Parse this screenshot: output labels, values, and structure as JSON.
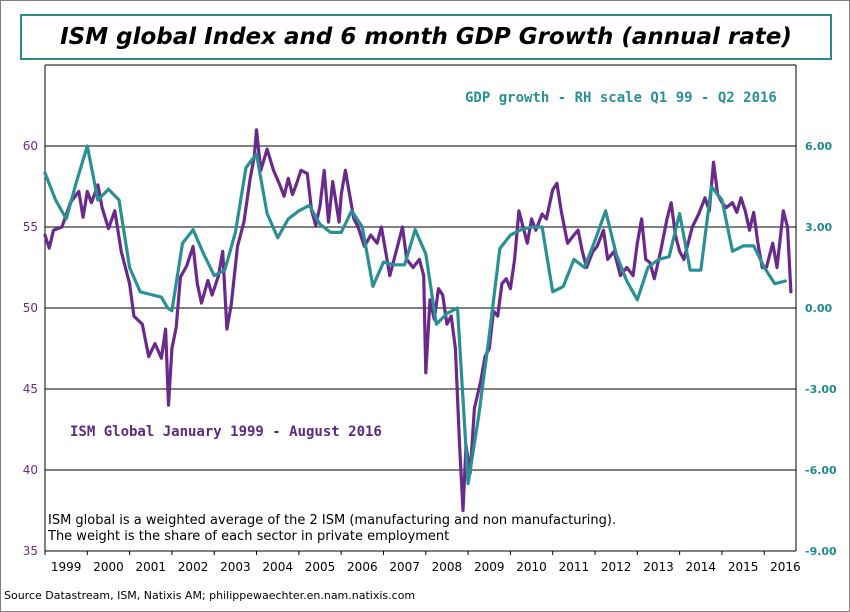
{
  "title": "ISM global Index and 6 month GDP Growth (annual rate)",
  "annotations": {
    "gdp": "GDP growth - RH scale Q1 99 - Q2 2016",
    "ism": "ISM Global January 1999 - August 2016"
  },
  "note": "ISM global is a weighted average of the 2 ISM (manufacturing and non manufacturing). The weight is the share of each sector in private employment",
  "source": "Source Datastream, ISM, Natixis AM; philippewaechter.en.nam.natixis.com",
  "colors": {
    "ism": "#6a2a8c",
    "gdp": "#2a9094",
    "grid": "#000000",
    "frame": "#2a8a8e"
  },
  "chart_data": {
    "type": "line",
    "x_ticks": [
      "1999",
      "2000",
      "2001",
      "2002",
      "2003",
      "2004",
      "2005",
      "2006",
      "2007",
      "2008",
      "2009",
      "2010",
      "2011",
      "2012",
      "2013",
      "2014",
      "2015",
      "2016"
    ],
    "y_left_ticks": [
      "35",
      "40",
      "45",
      "50",
      "55",
      "60"
    ],
    "y_right_ticks": [
      "-9.00",
      "-6.00",
      "-3.00",
      "0.00",
      "3.00",
      "6.00"
    ],
    "y_left_range": [
      35,
      65
    ],
    "y_right_range": [
      -9,
      9
    ],
    "grid": "horizontal",
    "series": [
      {
        "name": "ISM Global January 1999 - August 2016",
        "axis": "left",
        "color": "#6a2a8c",
        "points": [
          [
            1999.0,
            54.5
          ],
          [
            1999.1,
            53.7
          ],
          [
            1999.2,
            54.8
          ],
          [
            1999.4,
            55.0
          ],
          [
            1999.6,
            56.5
          ],
          [
            1999.8,
            57.2
          ],
          [
            1999.9,
            55.6
          ],
          [
            2000.0,
            57.2
          ],
          [
            2000.1,
            56.5
          ],
          [
            2000.25,
            57.6
          ],
          [
            2000.35,
            56.2
          ],
          [
            2000.5,
            54.9
          ],
          [
            2000.65,
            56.0
          ],
          [
            2000.8,
            53.5
          ],
          [
            2001.0,
            51.5
          ],
          [
            2001.1,
            49.5
          ],
          [
            2001.3,
            49.0
          ],
          [
            2001.45,
            47.0
          ],
          [
            2001.6,
            47.8
          ],
          [
            2001.75,
            46.9
          ],
          [
            2001.85,
            48.7
          ],
          [
            2001.92,
            44.0
          ],
          [
            2002.0,
            47.5
          ],
          [
            2002.1,
            48.8
          ],
          [
            2002.2,
            51.9
          ],
          [
            2002.35,
            52.6
          ],
          [
            2002.5,
            53.8
          ],
          [
            2002.6,
            51.5
          ],
          [
            2002.7,
            50.3
          ],
          [
            2002.85,
            51.7
          ],
          [
            2002.95,
            50.8
          ],
          [
            2003.1,
            52.0
          ],
          [
            2003.2,
            53.5
          ],
          [
            2003.3,
            48.7
          ],
          [
            2003.4,
            50.2
          ],
          [
            2003.55,
            53.8
          ],
          [
            2003.7,
            55.3
          ],
          [
            2003.85,
            58.0
          ],
          [
            2003.95,
            59.4
          ],
          [
            2004.0,
            61.0
          ],
          [
            2004.1,
            58.5
          ],
          [
            2004.25,
            59.8
          ],
          [
            2004.4,
            58.5
          ],
          [
            2004.55,
            57.6
          ],
          [
            2004.65,
            56.9
          ],
          [
            2004.75,
            58.0
          ],
          [
            2004.85,
            57.0
          ],
          [
            2004.95,
            57.7
          ],
          [
            2005.05,
            58.5
          ],
          [
            2005.2,
            58.3
          ],
          [
            2005.3,
            56.0
          ],
          [
            2005.4,
            55.1
          ],
          [
            2005.5,
            56.3
          ],
          [
            2005.6,
            58.5
          ],
          [
            2005.7,
            55.3
          ],
          [
            2005.8,
            57.8
          ],
          [
            2005.95,
            55.3
          ],
          [
            2006.0,
            57.0
          ],
          [
            2006.1,
            58.5
          ],
          [
            2006.2,
            57.0
          ],
          [
            2006.3,
            55.5
          ],
          [
            2006.4,
            55.0
          ],
          [
            2006.55,
            53.8
          ],
          [
            2006.7,
            54.5
          ],
          [
            2006.85,
            54.0
          ],
          [
            2006.95,
            55.0
          ],
          [
            2007.05,
            53.5
          ],
          [
            2007.15,
            52.0
          ],
          [
            2007.3,
            53.5
          ],
          [
            2007.45,
            55.0
          ],
          [
            2007.55,
            53.0
          ],
          [
            2007.7,
            52.5
          ],
          [
            2007.85,
            53.0
          ],
          [
            2007.95,
            52.0
          ],
          [
            2008.0,
            46.0
          ],
          [
            2008.1,
            50.5
          ],
          [
            2008.2,
            49.3
          ],
          [
            2008.3,
            51.2
          ],
          [
            2008.4,
            50.8
          ],
          [
            2008.5,
            49.0
          ],
          [
            2008.6,
            49.5
          ],
          [
            2008.7,
            47.5
          ],
          [
            2008.8,
            41.5
          ],
          [
            2008.88,
            37.5
          ],
          [
            2008.95,
            41.5
          ],
          [
            2009.05,
            39.8
          ],
          [
            2009.15,
            43.8
          ],
          [
            2009.3,
            45.5
          ],
          [
            2009.4,
            47.0
          ],
          [
            2009.5,
            47.5
          ],
          [
            2009.6,
            49.8
          ],
          [
            2009.7,
            49.5
          ],
          [
            2009.8,
            51.5
          ],
          [
            2009.9,
            51.8
          ],
          [
            2010.0,
            51.2
          ],
          [
            2010.1,
            53.0
          ],
          [
            2010.2,
            56.0
          ],
          [
            2010.3,
            55.0
          ],
          [
            2010.4,
            54.0
          ],
          [
            2010.5,
            55.5
          ],
          [
            2010.6,
            54.8
          ],
          [
            2010.75,
            55.8
          ],
          [
            2010.85,
            55.5
          ],
          [
            2011.0,
            57.3
          ],
          [
            2011.1,
            57.7
          ],
          [
            2011.2,
            56.0
          ],
          [
            2011.35,
            54.0
          ],
          [
            2011.5,
            54.5
          ],
          [
            2011.6,
            54.8
          ],
          [
            2011.7,
            53.5
          ],
          [
            2011.8,
            52.5
          ],
          [
            2011.95,
            53.5
          ],
          [
            2012.05,
            53.8
          ],
          [
            2012.2,
            54.8
          ],
          [
            2012.3,
            53.0
          ],
          [
            2012.45,
            53.5
          ],
          [
            2012.6,
            52.0
          ],
          [
            2012.75,
            52.5
          ],
          [
            2012.9,
            52.0
          ],
          [
            2013.0,
            54.0
          ],
          [
            2013.1,
            55.5
          ],
          [
            2013.2,
            53.0
          ],
          [
            2013.3,
            52.8
          ],
          [
            2013.4,
            51.8
          ],
          [
            2013.55,
            53.5
          ],
          [
            2013.7,
            55.5
          ],
          [
            2013.8,
            56.5
          ],
          [
            2013.9,
            54.5
          ],
          [
            2014.0,
            53.5
          ],
          [
            2014.1,
            53.0
          ],
          [
            2014.3,
            55.0
          ],
          [
            2014.45,
            55.8
          ],
          [
            2014.6,
            56.8
          ],
          [
            2014.7,
            56.0
          ],
          [
            2014.8,
            59.0
          ],
          [
            2014.9,
            57.0
          ],
          [
            2015.0,
            56.5
          ],
          [
            2015.1,
            56.2
          ],
          [
            2015.25,
            56.5
          ],
          [
            2015.35,
            55.9
          ],
          [
            2015.45,
            56.8
          ],
          [
            2015.55,
            56.0
          ],
          [
            2015.65,
            54.8
          ],
          [
            2015.75,
            55.9
          ],
          [
            2015.85,
            54.0
          ],
          [
            2015.95,
            52.5
          ],
          [
            2016.05,
            52.5
          ],
          [
            2016.2,
            54.0
          ],
          [
            2016.3,
            52.5
          ],
          [
            2016.45,
            56.0
          ],
          [
            2016.55,
            55.0
          ],
          [
            2016.63,
            51.0
          ]
        ]
      },
      {
        "name": "GDP growth - RH scale Q1 99 - Q2 2016",
        "axis": "right",
        "color": "#2a9094",
        "points": [
          [
            1999.0,
            5.0
          ],
          [
            1999.25,
            4.0
          ],
          [
            1999.5,
            3.3
          ],
          [
            1999.75,
            4.7
          ],
          [
            2000.0,
            6.0
          ],
          [
            2000.25,
            4.0
          ],
          [
            2000.5,
            4.4
          ],
          [
            2000.75,
            4.0
          ],
          [
            2001.0,
            1.5
          ],
          [
            2001.25,
            0.6
          ],
          [
            2001.5,
            0.5
          ],
          [
            2001.75,
            0.4
          ],
          [
            2001.9,
            0.0
          ],
          [
            2002.0,
            -0.1
          ],
          [
            2002.25,
            2.4
          ],
          [
            2002.5,
            2.9
          ],
          [
            2002.75,
            2.0
          ],
          [
            2003.0,
            1.2
          ],
          [
            2003.25,
            1.4
          ],
          [
            2003.5,
            2.8
          ],
          [
            2003.75,
            5.2
          ],
          [
            2004.0,
            5.7
          ],
          [
            2004.25,
            3.5
          ],
          [
            2004.5,
            2.6
          ],
          [
            2004.75,
            3.3
          ],
          [
            2005.0,
            3.6
          ],
          [
            2005.25,
            3.8
          ],
          [
            2005.5,
            3.1
          ],
          [
            2005.75,
            2.8
          ],
          [
            2006.0,
            2.8
          ],
          [
            2006.25,
            3.6
          ],
          [
            2006.5,
            3.0
          ],
          [
            2006.75,
            0.8
          ],
          [
            2007.0,
            1.7
          ],
          [
            2007.25,
            1.6
          ],
          [
            2007.5,
            1.6
          ],
          [
            2007.75,
            2.9
          ],
          [
            2008.0,
            2.0
          ],
          [
            2008.25,
            -0.6
          ],
          [
            2008.5,
            -0.2
          ],
          [
            2008.75,
            0.0
          ],
          [
            2009.0,
            -6.5
          ],
          [
            2009.25,
            -4.0
          ],
          [
            2009.5,
            -1.0
          ],
          [
            2009.75,
            2.2
          ],
          [
            2010.0,
            2.7
          ],
          [
            2010.25,
            2.9
          ],
          [
            2010.5,
            3.0
          ],
          [
            2010.75,
            3.0
          ],
          [
            2011.0,
            0.6
          ],
          [
            2011.25,
            0.8
          ],
          [
            2011.5,
            1.8
          ],
          [
            2011.75,
            1.5
          ],
          [
            2012.0,
            2.5
          ],
          [
            2012.25,
            3.6
          ],
          [
            2012.5,
            2.0
          ],
          [
            2012.75,
            1.0
          ],
          [
            2013.0,
            0.3
          ],
          [
            2013.25,
            1.5
          ],
          [
            2013.5,
            1.8
          ],
          [
            2013.75,
            1.9
          ],
          [
            2014.0,
            3.5
          ],
          [
            2014.25,
            1.4
          ],
          [
            2014.5,
            1.4
          ],
          [
            2014.75,
            4.5
          ],
          [
            2015.0,
            4.0
          ],
          [
            2015.25,
            2.1
          ],
          [
            2015.5,
            2.3
          ],
          [
            2015.75,
            2.3
          ],
          [
            2016.0,
            1.5
          ],
          [
            2016.25,
            0.9
          ],
          [
            2016.5,
            1.0
          ]
        ]
      }
    ]
  }
}
